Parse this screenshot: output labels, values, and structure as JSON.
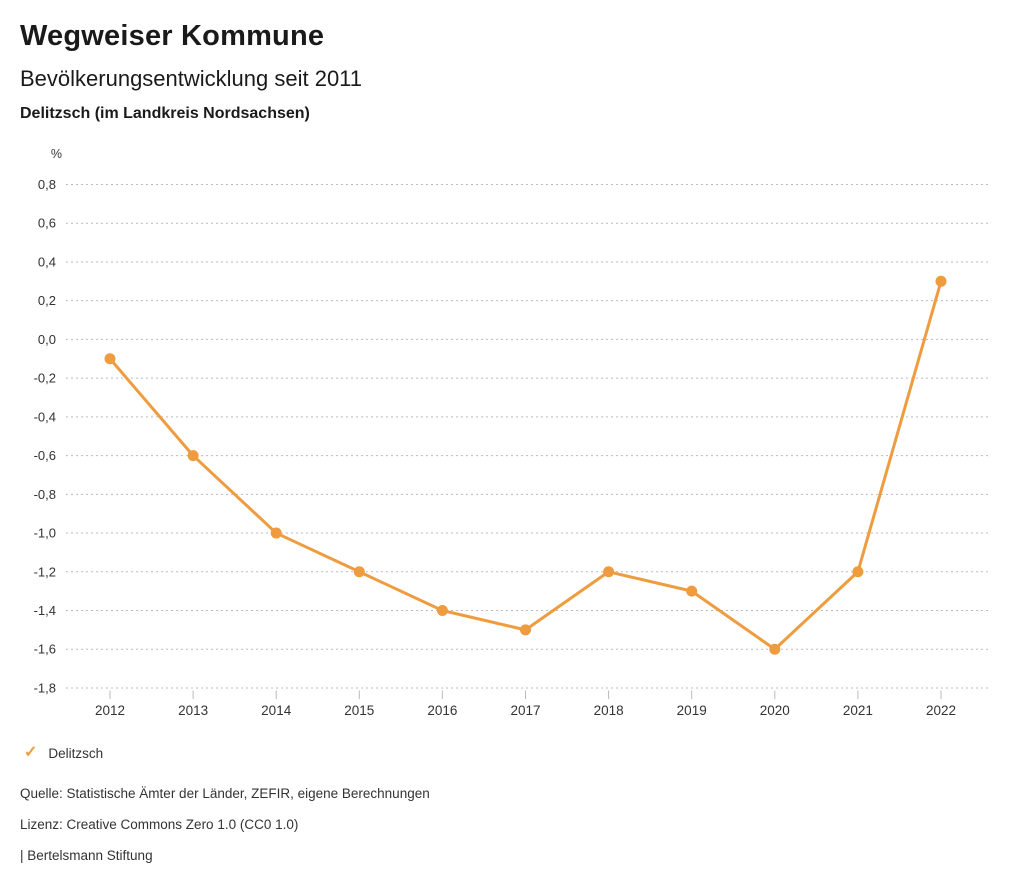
{
  "header": {
    "title": "Wegweiser Kommune",
    "subtitle": "Bevölkerungsentwicklung seit 2011",
    "region": "Delitzsch (im Landkreis Nordsachsen)"
  },
  "legend": {
    "position": "bottom-left",
    "items": [
      {
        "label": "Delitzsch",
        "color": "#EE9C3F",
        "check_icon": "✓"
      }
    ]
  },
  "footer": {
    "source": "Quelle: Statistische Ämter der Länder, ZEFIR, eigene Berechnungen",
    "license": "Lizenz: Creative Commons Zero 1.0 (CC0 1.0)",
    "attribution": "| Bertelsmann Stiftung"
  },
  "colors": {
    "accent": "#EE9C3F",
    "gridline": "#bbbbbb",
    "tick": "#bbbbbb",
    "axis_text": "#333333",
    "background": "#ffffff"
  },
  "chart_data": {
    "type": "line",
    "title": "Bevölkerungsentwicklung seit 2011",
    "ylabel": "%",
    "x": [
      "2012",
      "2013",
      "2014",
      "2015",
      "2016",
      "2017",
      "2018",
      "2019",
      "2020",
      "2021",
      "2022"
    ],
    "series": [
      {
        "name": "Delitzsch",
        "color": "#EE9C3F",
        "values": [
          -0.1,
          -0.6,
          -1.0,
          -1.2,
          -1.4,
          -1.5,
          -1.2,
          -1.3,
          -1.6,
          -1.2,
          0.3
        ]
      }
    ],
    "ylim": [
      -1.8,
      0.8
    ],
    "ytick_step": 0.2,
    "ytick_labels": [
      "0,8",
      "0,6",
      "0,4",
      "0,2",
      "0,0",
      "-0,2",
      "-0,4",
      "-0,6",
      "-0,8",
      "-1,0",
      "-1,2",
      "-1,4",
      "-1,6",
      "-1,8"
    ],
    "grid": "horizontal-dotted",
    "legend_position": "bottom-left",
    "marker": "circle",
    "marker_radius": 5.5,
    "line_width": 3
  }
}
